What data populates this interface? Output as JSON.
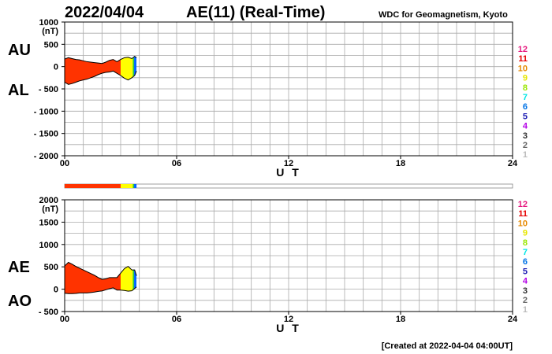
{
  "header": {
    "date": "2022/04/04",
    "title": "AE(11) (Real-Time)",
    "source": "WDC for Geomagnetism, Kyoto"
  },
  "footer": {
    "created": "[Created at 2022-04-04 04:00UT]"
  },
  "legend": {
    "labels": [
      "12",
      "11",
      "10",
      "9",
      "8",
      "7",
      "6",
      "5",
      "4",
      "3",
      "2",
      "1"
    ],
    "colors": [
      "#e6197f",
      "#e60000",
      "#e68a00",
      "#e6e600",
      "#99e600",
      "#00e6e6",
      "#0073e6",
      "#1a1ab3",
      "#b300e6",
      "#333333",
      "#666666",
      "#bbbbbb"
    ]
  },
  "station_colors": {
    "red": "#ff3300",
    "yellow": "#ffff00",
    "green": "#33cc33",
    "blue": "#0066ff"
  },
  "chart_data": [
    {
      "type": "area",
      "panel": "AU/AL",
      "series_labels": [
        "AU",
        "AL"
      ],
      "unit": "(nT)",
      "xlabel": "U T",
      "xlim": [
        0,
        24
      ],
      "xticks": [
        0,
        6,
        12,
        18,
        24
      ],
      "xtick_labels": [
        "00",
        "06",
        "12",
        "18",
        "24"
      ],
      "ylim": [
        -2000,
        1000
      ],
      "yticks": [
        1000,
        500,
        0,
        -500,
        -1000,
        -1500,
        -2000
      ],
      "ytick_labels": [
        "1000",
        "500",
        "0",
        "- 500",
        "- 1000",
        "- 1500",
        "- 2000"
      ],
      "grid": true,
      "x": [
        0.0,
        0.2,
        0.4,
        0.6,
        0.8,
        1.0,
        1.2,
        1.4,
        1.6,
        1.8,
        2.0,
        2.2,
        2.4,
        2.6,
        2.8,
        3.0,
        3.2,
        3.4,
        3.6,
        3.75,
        3.85
      ],
      "au": [
        170,
        200,
        180,
        160,
        150,
        130,
        110,
        100,
        90,
        80,
        70,
        100,
        140,
        160,
        110,
        160,
        200,
        210,
        180,
        230,
        200
      ],
      "al": [
        -350,
        -400,
        -380,
        -350,
        -320,
        -300,
        -280,
        -250,
        -220,
        -180,
        -150,
        -130,
        -120,
        -100,
        -150,
        -200,
        -260,
        -300,
        -250,
        -200,
        -100
      ]
    },
    {
      "type": "area",
      "panel": "AE/AO",
      "series_labels": [
        "AE",
        "AO"
      ],
      "unit": "(nT)",
      "xlabel": "U T",
      "xlim": [
        0,
        24
      ],
      "xticks": [
        0,
        6,
        12,
        18,
        24
      ],
      "xtick_labels": [
        "00",
        "06",
        "12",
        "18",
        "24"
      ],
      "ylim": [
        -500,
        2000
      ],
      "yticks": [
        2000,
        1500,
        1000,
        500,
        0,
        -500
      ],
      "ytick_labels": [
        "2000",
        "1500",
        "1000",
        "500",
        "0",
        "- 500"
      ],
      "grid": true,
      "x": [
        0.0,
        0.2,
        0.4,
        0.6,
        0.8,
        1.0,
        1.2,
        1.4,
        1.6,
        1.8,
        2.0,
        2.2,
        2.4,
        2.6,
        2.8,
        3.0,
        3.2,
        3.4,
        3.6,
        3.75,
        3.85
      ],
      "ae": [
        520,
        600,
        560,
        510,
        470,
        430,
        390,
        350,
        310,
        260,
        220,
        230,
        260,
        260,
        260,
        360,
        460,
        510,
        430,
        430,
        300
      ],
      "ao": [
        -90,
        -100,
        -100,
        -95,
        -85,
        -85,
        -85,
        -75,
        -65,
        -50,
        -40,
        -15,
        10,
        30,
        -20,
        -20,
        -30,
        -45,
        -35,
        15,
        50
      ]
    }
  ],
  "station_bar": {
    "xlim": [
      0,
      24
    ],
    "segments": [
      {
        "from": 0.0,
        "to": 3.0,
        "color": "red"
      },
      {
        "from": 3.0,
        "to": 3.65,
        "color": "yellow"
      },
      {
        "from": 3.65,
        "to": 3.72,
        "color": "green"
      },
      {
        "from": 3.72,
        "to": 3.85,
        "color": "blue"
      }
    ]
  }
}
